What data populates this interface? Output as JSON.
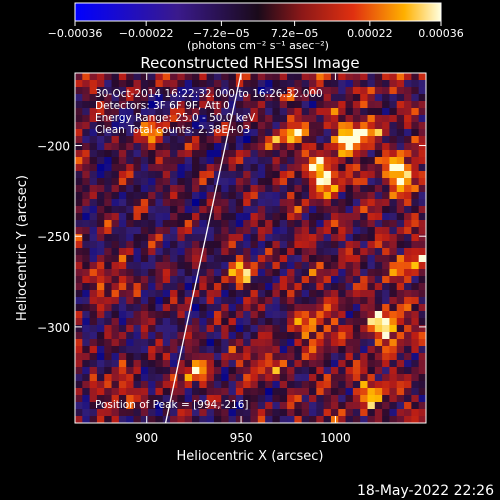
{
  "footer_timestamp": "18-May-2022 22:26",
  "colorbar": {
    "ticks": [
      {
        "value": -0.00036,
        "label": "−0.00036"
      },
      {
        "value": -0.00022,
        "label": "−0.00022"
      },
      {
        "value": -7.2e-05,
        "label": "−7.2e−05"
      },
      {
        "value": 7.2e-05,
        "label": "7.2e−05"
      },
      {
        "value": 0.00022,
        "label": "0.00022"
      },
      {
        "value": 0.00036,
        "label": "0.00036"
      }
    ],
    "range": [
      -0.00036,
      0.00036
    ],
    "unit_label": "(photons cm⁻² s⁻¹ asec⁻²)"
  },
  "chart_data": {
    "type": "heatmap",
    "title": "Reconstructed RHESSI Image",
    "xlabel": "Heliocentric X (arcsec)",
    "ylabel": "Heliocentric Y (arcsec)",
    "xlim": [
      862,
      1048
    ],
    "ylim": [
      -353,
      -160
    ],
    "xticks": [
      900,
      950,
      1000
    ],
    "yticks": [
      -200,
      -250,
      -300
    ],
    "grid": false,
    "colormap": "rhessi-blue-purple-red-yellow-white",
    "annotations": [
      "30-Oct-2014 16:22:32.000 to 16:26:32.000",
      "Detectors: 3F 6F 9F, Att 0",
      "Energy Range: 25.0 - 50.0 keV",
      "Clean    Total counts: 2.38E+03"
    ],
    "peak_label": "Position of Peak = [994,-216]",
    "peak": {
      "x": 994,
      "y": -216
    },
    "limb_line": [
      {
        "x": 910,
        "y": -353
      },
      {
        "x": 950,
        "y": -160
      }
    ],
    "grid_size": {
      "cols": 48,
      "rows": 50
    },
    "hotspots": [
      {
        "x": 1010,
        "y": -195,
        "v": 1.0
      },
      {
        "x": 994,
        "y": -216,
        "v": 0.85
      },
      {
        "x": 1035,
        "y": -215,
        "v": 0.9
      },
      {
        "x": 1028,
        "y": -300,
        "v": 0.8
      },
      {
        "x": 975,
        "y": -195,
        "v": 0.6
      },
      {
        "x": 880,
        "y": -275,
        "v": 0.55
      },
      {
        "x": 960,
        "y": -320,
        "v": 0.6
      },
      {
        "x": 990,
        "y": -300,
        "v": 0.55
      },
      {
        "x": 925,
        "y": -325,
        "v": 0.6
      },
      {
        "x": 905,
        "y": -195,
        "v": 0.45
      },
      {
        "x": 1040,
        "y": -265,
        "v": 0.5
      },
      {
        "x": 950,
        "y": -270,
        "v": 0.55
      },
      {
        "x": 885,
        "y": -335,
        "v": 0.55
      },
      {
        "x": 1020,
        "y": -335,
        "v": 0.5
      }
    ]
  }
}
